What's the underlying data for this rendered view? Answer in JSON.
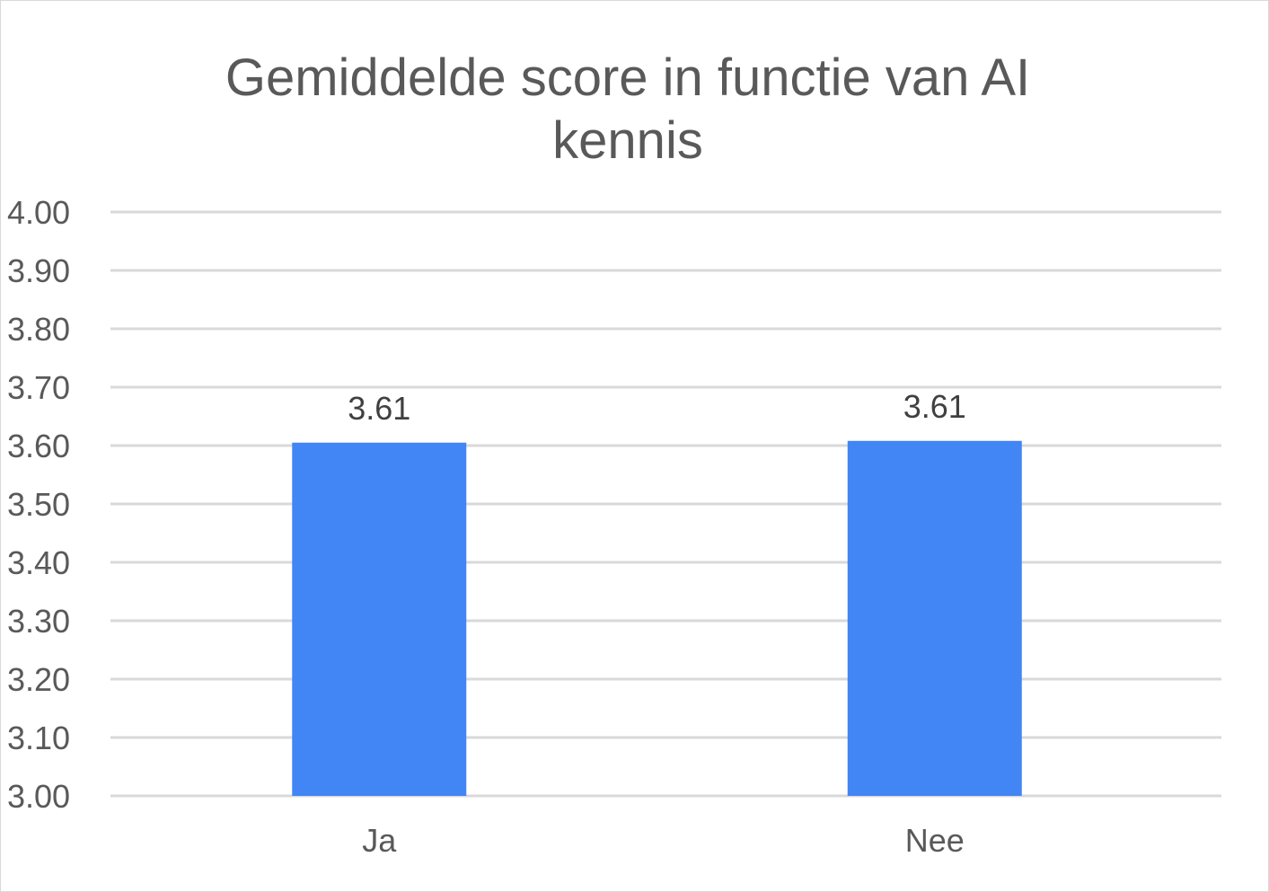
{
  "chart_data": {
    "type": "bar",
    "title": "Gemiddelde score in functie van AI\nkennis",
    "categories": [
      "Ja",
      "Nee"
    ],
    "series": [
      {
        "values": [
          3.605,
          3.608
        ]
      }
    ],
    "data_labels": [
      "3.61",
      "3.61"
    ],
    "ylim": [
      3.0,
      4.0
    ],
    "yticks": [
      "3.00",
      "3.10",
      "3.20",
      "3.30",
      "3.40",
      "3.50",
      "3.60",
      "3.70",
      "3.80",
      "3.90",
      "4.00"
    ],
    "ytick_values": [
      3.0,
      3.1,
      3.2,
      3.3,
      3.4,
      3.5,
      3.6,
      3.7,
      3.8,
      3.9,
      4.0
    ],
    "grid": true,
    "legend": "none",
    "bar_color": "#4285f4",
    "grid_color": "#d9d9d9",
    "text_color": "#595959"
  }
}
